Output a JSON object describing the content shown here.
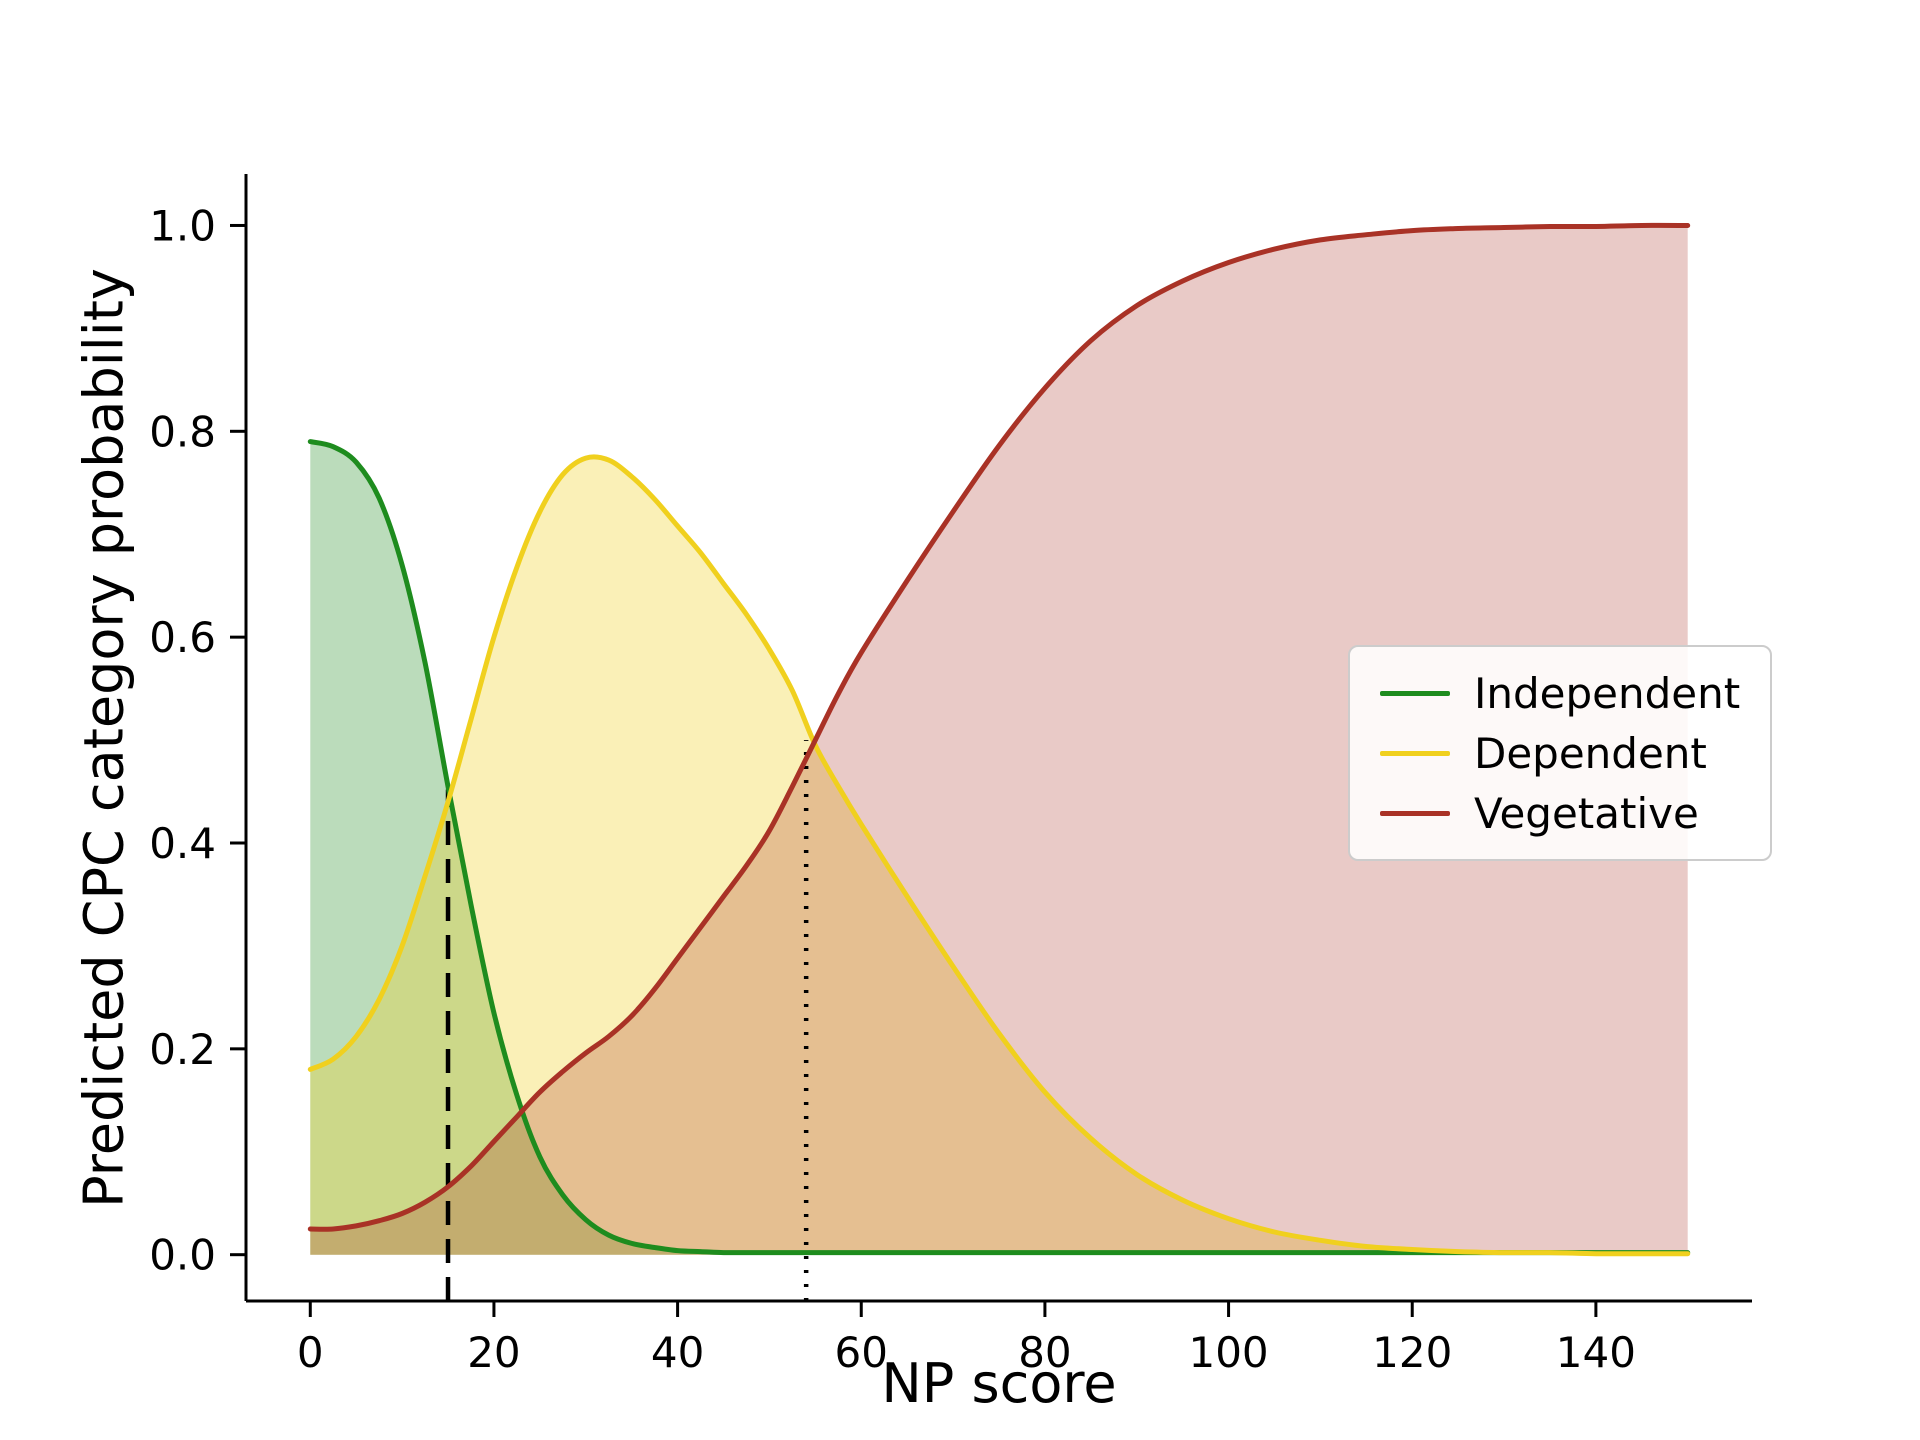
{
  "figure": {
    "background_color": "#ffffff"
  },
  "chart_data": {
    "type": "line",
    "title": "",
    "xlabel": "NP score",
    "ylabel": "Predicted CPC category probability",
    "xlim": [
      -7,
      157
    ],
    "ylim": [
      -0.045,
      1.05
    ],
    "xticks": [
      0,
      20,
      40,
      60,
      80,
      100,
      120,
      140
    ],
    "yticks": [
      0.0,
      0.2,
      0.4,
      0.6,
      0.8,
      1.0
    ],
    "ytick_labels": [
      "0.0",
      "0.2",
      "0.4",
      "0.6",
      "0.8",
      "1.0"
    ],
    "grid": false,
    "legend_position": "center right",
    "x": [
      0,
      2.5,
      5,
      7.5,
      10,
      12.5,
      15,
      17.5,
      20,
      22.5,
      25,
      27.5,
      30,
      32.5,
      35,
      37.5,
      40,
      42.5,
      45,
      47.5,
      50,
      52.5,
      55,
      57.5,
      60,
      65,
      70,
      75,
      80,
      85,
      90,
      95,
      100,
      105,
      110,
      115,
      120,
      125,
      130,
      135,
      140,
      145,
      150
    ],
    "series": [
      {
        "name": "Independent",
        "color": "#1e8c1e",
        "fill_opacity": 0.3,
        "values": [
          0.79,
          0.785,
          0.77,
          0.735,
          0.67,
          0.575,
          0.455,
          0.34,
          0.235,
          0.155,
          0.095,
          0.058,
          0.034,
          0.019,
          0.011,
          0.007,
          0.004,
          0.003,
          0.002,
          0.002,
          0.002,
          0.002,
          0.002,
          0.002,
          0.002,
          0.002,
          0.002,
          0.002,
          0.002,
          0.002,
          0.002,
          0.002,
          0.002,
          0.002,
          0.002,
          0.002,
          0.002,
          0.002,
          0.002,
          0.002,
          0.002,
          0.002,
          0.002
        ]
      },
      {
        "name": "Dependent",
        "color": "#f0d01e",
        "fill_opacity": 0.32,
        "values": [
          0.18,
          0.19,
          0.212,
          0.248,
          0.3,
          0.368,
          0.44,
          0.52,
          0.6,
          0.668,
          0.722,
          0.758,
          0.774,
          0.772,
          0.756,
          0.734,
          0.708,
          0.682,
          0.652,
          0.622,
          0.588,
          0.548,
          0.495,
          0.455,
          0.418,
          0.348,
          0.28,
          0.215,
          0.158,
          0.113,
          0.078,
          0.053,
          0.035,
          0.022,
          0.014,
          0.008,
          0.005,
          0.003,
          0.002,
          0.002,
          0.001,
          0.001,
          0.001
        ]
      },
      {
        "name": "Vegetative",
        "color": "#a93226",
        "fill_opacity": 0.26,
        "values": [
          0.025,
          0.025,
          0.028,
          0.033,
          0.04,
          0.051,
          0.066,
          0.086,
          0.11,
          0.134,
          0.158,
          0.178,
          0.196,
          0.212,
          0.232,
          0.258,
          0.288,
          0.318,
          0.348,
          0.378,
          0.412,
          0.455,
          0.5,
          0.545,
          0.585,
          0.655,
          0.722,
          0.786,
          0.842,
          0.888,
          0.922,
          0.946,
          0.964,
          0.977,
          0.986,
          0.991,
          0.995,
          0.997,
          0.998,
          0.999,
          0.999,
          1.0,
          1.0
        ]
      }
    ],
    "markers": [
      {
        "type": "vline",
        "style": "dashed",
        "x": 15,
        "y_top": 0.452,
        "color": "#000000"
      },
      {
        "type": "vline",
        "style": "dotted",
        "x": 54,
        "y_top": 0.5,
        "color": "#000000"
      }
    ]
  }
}
